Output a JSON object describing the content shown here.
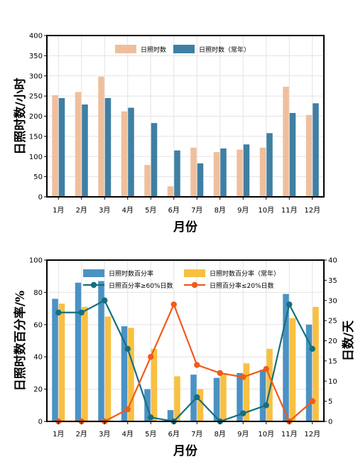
{
  "colors": {
    "bar1": "#efbf9d",
    "bar2": "#3f7fa3",
    "pct_bar": "#4a92c4",
    "pct_bar_normal": "#f8c042",
    "line_ge60": "#156f7e",
    "line_le20": "#f25a1c",
    "grid": "#e3e3e3"
  },
  "chart_data": [
    {
      "type": "bar",
      "categories": [
        "1月",
        "2月",
        "3月",
        "4月",
        "5月",
        "6月",
        "7月",
        "8月",
        "9月",
        "10月",
        "11月",
        "12月"
      ],
      "xlabel": "月份",
      "ylabel": "日照时数/小时",
      "ylim": [
        0,
        400
      ],
      "yticks": [
        "0",
        "50",
        "100",
        "150",
        "200",
        "250",
        "300",
        "350",
        "400"
      ],
      "grid": true,
      "legend_position": "top-center",
      "series": [
        {
          "name": "日照时数",
          "values": [
            252,
            260,
            298,
            212,
            79,
            26,
            122,
            111,
            117,
            122,
            273,
            203
          ]
        },
        {
          "name": "日照时数（常年）",
          "values": [
            245,
            229,
            245,
            221,
            183,
            115,
            83,
            120,
            130,
            158,
            208,
            232
          ]
        }
      ]
    },
    {
      "type": "bar",
      "categories": [
        "1月",
        "2月",
        "3月",
        "4月",
        "5月",
        "6月",
        "7月",
        "8月",
        "9月",
        "10月",
        "11月",
        "12月"
      ],
      "xlabel": "月份",
      "ylabel": "日照时数百分率/%",
      "ylabel_right": "日数/天",
      "ylim": [
        0,
        100
      ],
      "ylim_right": [
        0,
        40
      ],
      "yticks": [
        "0",
        "20",
        "40",
        "60",
        "80",
        "100"
      ],
      "yticks_right": [
        "0",
        "5",
        "10",
        "15",
        "20",
        "25",
        "30",
        "35",
        "40"
      ],
      "grid": true,
      "legend_position": "top-center",
      "series": [
        {
          "name": "日照时数百分率",
          "kind": "bar",
          "axis": "left",
          "values": [
            76,
            86,
            87,
            59,
            20,
            7,
            29,
            27,
            30,
            32,
            79,
            60
          ]
        },
        {
          "name": "日照时数百分率（常年）",
          "kind": "bar",
          "axis": "left",
          "values": [
            73,
            71,
            65,
            58,
            45,
            28,
            20,
            30,
            36,
            45,
            64,
            71
          ]
        },
        {
          "name": "日照百分率≥60%日数",
          "kind": "line",
          "axis": "right",
          "values": [
            27,
            27,
            30,
            18,
            1,
            0,
            6,
            0,
            2,
            4,
            29,
            18
          ]
        },
        {
          "name": "日照百分率≤20%日数",
          "kind": "line",
          "axis": "right",
          "values": [
            0,
            0,
            0,
            3,
            16,
            29,
            14,
            12,
            11,
            13,
            0,
            5
          ]
        }
      ]
    }
  ]
}
